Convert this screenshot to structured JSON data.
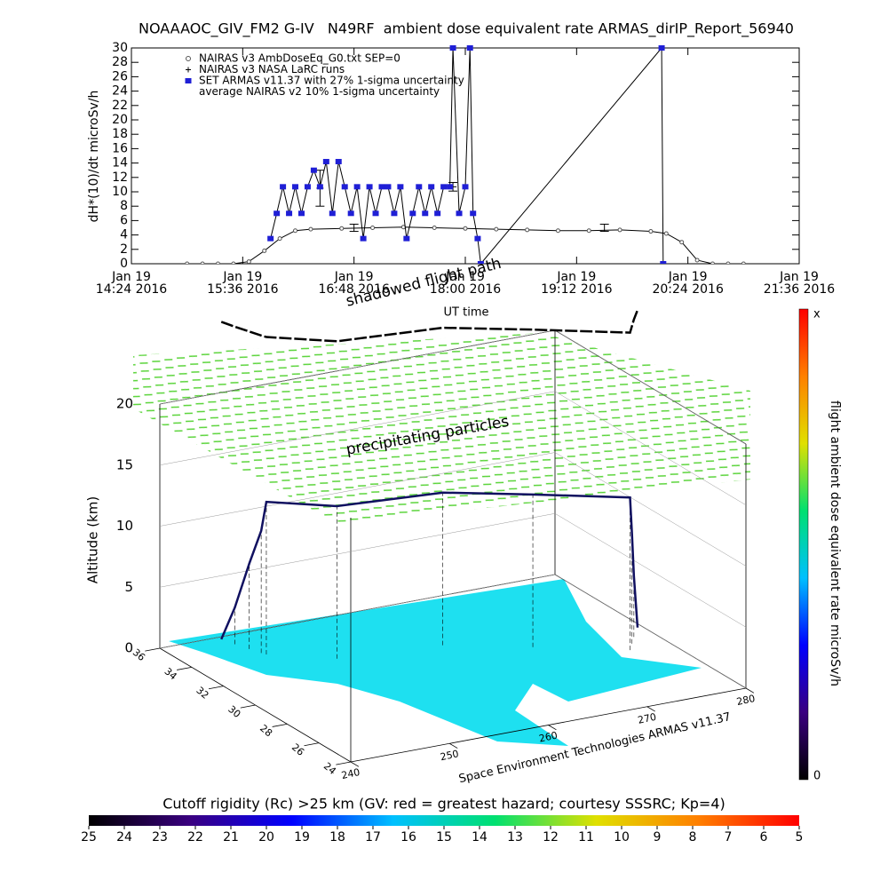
{
  "chart_data": [
    {
      "type": "line",
      "title": "NOAAAOC_GIV_FM2 G-IV   N49RF  ambient dose equivalent rate ARMAS_dirIP_Report_56940",
      "ylabel": "dH*(10)/dt microSv/h",
      "xlabel": "UT time",
      "xlim": [
        "2016-01-19T14:24",
        "2016-01-19T21:36"
      ],
      "xticks": [
        {
          "value": "2016-01-19T14:24",
          "label": "Jan 19\n14:24 2016"
        },
        {
          "value": "2016-01-19T15:36",
          "label": "Jan 19\n15:36 2016"
        },
        {
          "value": "2016-01-19T16:48",
          "label": "Jan 19\n16:48 2016"
        },
        {
          "value": "2016-01-19T18:00",
          "label": "Jan 19\n18:00 2016"
        },
        {
          "value": "2016-01-19T19:12",
          "label": "Jan 19\n19:12 2016"
        },
        {
          "value": "2016-01-19T20:24",
          "label": "Jan 19\n20:24 2016"
        },
        {
          "value": "2016-01-19T21:36",
          "label": "Jan 19\n21:36 2016"
        }
      ],
      "ylim": [
        0,
        30
      ],
      "yticks": [
        0,
        2,
        4,
        6,
        8,
        10,
        12,
        14,
        16,
        18,
        20,
        22,
        24,
        26,
        28,
        30
      ],
      "series": [
        {
          "name": "NAIRAS v3 AmbDoseEq_G0.txt SEP=0",
          "color": "#555555",
          "marker": "circle",
          "line": true,
          "x": [
            "2016-01-19T15:00",
            "2016-01-19T15:10",
            "2016-01-19T15:20",
            "2016-01-19T15:30",
            "2016-01-19T15:40",
            "2016-01-19T15:50",
            "2016-01-19T16:00",
            "2016-01-19T16:10",
            "2016-01-19T16:20",
            "2016-01-19T16:40",
            "2016-01-19T17:00",
            "2016-01-19T17:20",
            "2016-01-19T17:40",
            "2016-01-19T18:00",
            "2016-01-19T18:20",
            "2016-01-19T18:40",
            "2016-01-19T19:00",
            "2016-01-19T19:20",
            "2016-01-19T19:40",
            "2016-01-19T20:00",
            "2016-01-19T20:10",
            "2016-01-19T20:20",
            "2016-01-19T20:30",
            "2016-01-19T20:40",
            "2016-01-19T20:50",
            "2016-01-19T21:00"
          ],
          "values": [
            0,
            0,
            0,
            0,
            0.3,
            1.8,
            3.5,
            4.6,
            4.8,
            4.9,
            5.0,
            5.1,
            5.0,
            4.9,
            4.8,
            4.7,
            4.6,
            4.6,
            4.7,
            4.5,
            4.2,
            3.0,
            0.5,
            0,
            0,
            0
          ]
        },
        {
          "name": "NAIRAS v3 NASA LaRC runs",
          "color": "#000000",
          "marker": "plus",
          "line": false,
          "x": [
            "2016-01-19T16:26",
            "2016-01-19T17:52"
          ],
          "values": [
            10.5,
            10.7
          ],
          "errors": [
            2.5,
            0.6
          ]
        },
        {
          "name": "SET ARMAS v11.37 with 27% 1-sigma uncertainty",
          "color": "#1f1fd6",
          "marker": "square",
          "line": true,
          "x": [
            "2016-01-19T15:54",
            "2016-01-19T15:58",
            "2016-01-19T16:02",
            "2016-01-19T16:06",
            "2016-01-19T16:10",
            "2016-01-19T16:14",
            "2016-01-19T16:18",
            "2016-01-19T16:22",
            "2016-01-19T16:26",
            "2016-01-19T16:30",
            "2016-01-19T16:34",
            "2016-01-19T16:38",
            "2016-01-19T16:42",
            "2016-01-19T16:46",
            "2016-01-19T16:50",
            "2016-01-19T16:54",
            "2016-01-19T16:58",
            "2016-01-19T17:02",
            "2016-01-19T17:06",
            "2016-01-19T17:10",
            "2016-01-19T17:14",
            "2016-01-19T17:18",
            "2016-01-19T17:22",
            "2016-01-19T17:26",
            "2016-01-19T17:30",
            "2016-01-19T17:34",
            "2016-01-19T17:38",
            "2016-01-19T17:42",
            "2016-01-19T17:46",
            "2016-01-19T17:50",
            "2016-01-19T17:52",
            "2016-01-19T17:56",
            "2016-01-19T18:00",
            "2016-01-19T18:03",
            "2016-01-19T18:05",
            "2016-01-19T18:08",
            "2016-01-19T18:10",
            "2016-01-19T20:07",
            "2016-01-19T20:08"
          ],
          "values": [
            3.5,
            7,
            10.7,
            7,
            10.7,
            7,
            10.7,
            13,
            10.7,
            14.2,
            7,
            14.2,
            10.7,
            7,
            10.7,
            3.5,
            10.7,
            7,
            10.7,
            10.7,
            7,
            10.7,
            3.5,
            7,
            10.7,
            7,
            10.7,
            7,
            10.7,
            10.7,
            30,
            7,
            10.7,
            30,
            7,
            3.5,
            0,
            30,
            0
          ]
        },
        {
          "name": "average NAIRAS v2 10% 1-sigma uncertainty",
          "color": "#000000",
          "marker": "errorbar",
          "line": false,
          "x": [
            "2016-01-19T16:48",
            "2016-01-19T19:30"
          ],
          "values": [
            5,
            5
          ],
          "errors": [
            0.5,
            0.5
          ]
        }
      ]
    },
    {
      "type": "flight3d",
      "zlabel": "Altitude (km)",
      "xlim": [
        240,
        280
      ],
      "xticks": [
        240,
        250,
        260,
        270,
        280
      ],
      "ylim": [
        24,
        36
      ],
      "yticks": [
        24,
        26,
        28,
        30,
        32,
        34,
        36
      ],
      "zlim": [
        0,
        20
      ],
      "zticks": [
        0,
        5,
        10,
        15,
        20
      ],
      "annotations": [
        "shadowed flight path",
        "precipitating particles",
        "Space Environment Technologies ARMAS v11.37"
      ],
      "color": "#101060",
      "x": [
        245.9,
        246.3,
        246.8,
        247.2,
        247.4,
        252.3,
        262.2,
        268.9,
        276,
        277,
        278,
        279.5
      ],
      "y": [
        35.8,
        35.2,
        34.6,
        34.1,
        33.9,
        32.5,
        32,
        30.5,
        28.8,
        29.3,
        29.8,
        30.5
      ],
      "z": [
        0,
        3,
        7,
        10,
        12.5,
        12.5,
        12.5,
        12.5,
        12.5,
        9,
        5,
        0
      ]
    },
    {
      "type": "colorbar",
      "label": "flight ambient dose equivalent rate microSv/h",
      "labels": [
        "0",
        "x"
      ],
      "colors": [
        "#000000",
        "#3a0080",
        "#0000ff",
        "#00c0ff",
        "#00e070",
        "#e0e000",
        "#ff8000",
        "#ff0000"
      ]
    },
    {
      "type": "colorbar",
      "label": "Cutoff rigidity (Rc) >25 km (GV: red = greatest hazard; courtesy SSSRC; Kp=4)",
      "lim": [
        25,
        5
      ],
      "ticks": [
        25,
        24,
        23,
        22,
        21,
        20,
        19,
        18,
        17,
        16,
        15,
        14,
        13,
        12,
        11,
        10,
        9,
        8,
        7,
        6,
        5
      ],
      "colors": [
        "#000000",
        "#3a0080",
        "#0000ff",
        "#00c0ff",
        "#00e070",
        "#e0e000",
        "#ff8000",
        "#ff0000"
      ]
    }
  ]
}
